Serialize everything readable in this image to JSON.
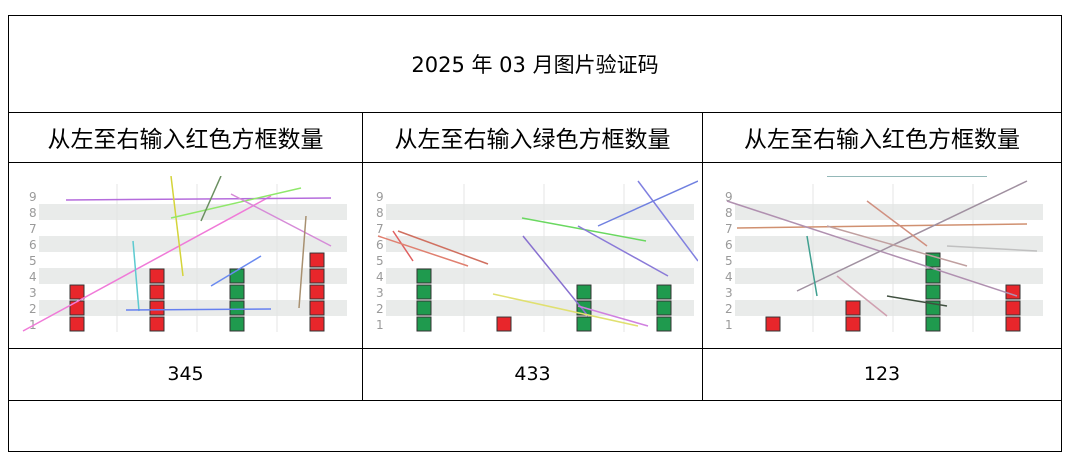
{
  "title": "2025 年 03 月图片验证码",
  "columns": [
    {
      "instruction": "从左至右输入红色方框数量",
      "answer": "345",
      "captcha": {
        "row_labels": [
          "1",
          "2",
          "3",
          "4",
          "5",
          "6",
          "7",
          "8",
          "9"
        ],
        "box_columns": [
          {
            "count": 3,
            "color": "red"
          },
          {
            "count": 4,
            "color": "red"
          },
          {
            "count": 4,
            "color": "green"
          },
          {
            "count": 5,
            "color": "red"
          }
        ]
      }
    },
    {
      "instruction": "从左至右输入绿色方框数量",
      "answer": "433",
      "captcha": {
        "row_labels": [
          "1",
          "2",
          "3",
          "4",
          "5",
          "6",
          "7",
          "8",
          "9"
        ],
        "box_columns": [
          {
            "count": 4,
            "color": "green"
          },
          {
            "count": 1,
            "color": "red"
          },
          {
            "count": 3,
            "color": "green"
          },
          {
            "count": 3,
            "color": "green"
          }
        ]
      }
    },
    {
      "instruction": "从左至右输入红色方框数量",
      "answer": "123",
      "captcha": {
        "row_labels": [
          "1",
          "2",
          "3",
          "4",
          "5",
          "6",
          "7",
          "8",
          "9"
        ],
        "box_columns": [
          {
            "count": 1,
            "color": "red"
          },
          {
            "count": 2,
            "color": "red"
          },
          {
            "count": 5,
            "color": "green"
          },
          {
            "count": 3,
            "color": "red"
          }
        ]
      }
    }
  ],
  "colors": {
    "red": "#e8262b",
    "green": "#1f9a4e",
    "band": "#e9ebea",
    "label": "#9a9a9a"
  }
}
